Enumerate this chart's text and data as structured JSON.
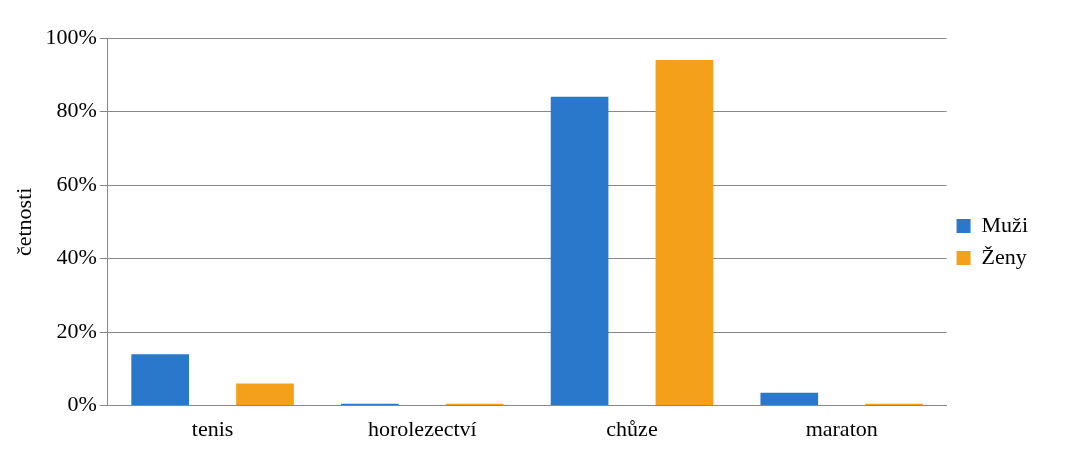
{
  "chart_data": {
    "type": "bar",
    "ylabel": "četnosti",
    "categories": [
      "tenis",
      "horolezectví",
      "chůze",
      "maraton"
    ],
    "series": [
      {
        "name": "Muži",
        "color": "#2a78cc",
        "values": [
          14,
          0.5,
          84,
          3.5
        ]
      },
      {
        "name": "Ženy",
        "color": "#f5a01a",
        "values": [
          6,
          0.5,
          94,
          0.5
        ]
      }
    ],
    "ylim": [
      0,
      100
    ],
    "yticks": [
      {
        "value": 0,
        "label": "0%"
      },
      {
        "value": 20,
        "label": "20%"
      },
      {
        "value": 40,
        "label": "40%"
      },
      {
        "value": 60,
        "label": "60%"
      },
      {
        "value": 80,
        "label": "80%"
      },
      {
        "value": 100,
        "label": "100%"
      }
    ],
    "grid": "y",
    "legend": "right"
  }
}
